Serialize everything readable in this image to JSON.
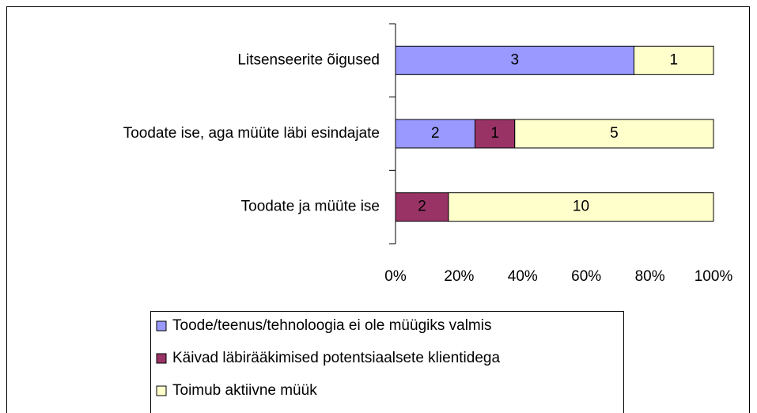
{
  "chart_data": {
    "type": "bar",
    "orientation": "horizontal",
    "stacking": "percent",
    "categories": [
      "Litsenseerite õigused",
      "Toodate ise, aga müüte läbi esindajate",
      "Toodate ja müüte ise"
    ],
    "series": [
      {
        "name": "Toode/teenus/tehnoloogia ei ole müügiks valmis",
        "color": "#9999ff",
        "values": [
          3,
          2,
          null
        ]
      },
      {
        "name": "Käivad läbirääkimised potentsiaalsete klientidega",
        "color": "#993366",
        "values": [
          null,
          1,
          2
        ]
      },
      {
        "name": "Toimub aktiivne müük",
        "color": "#ffffcc",
        "values": [
          1,
          5,
          10
        ]
      }
    ],
    "xlim": [
      0,
      100
    ],
    "xticks": [
      {
        "value": 0,
        "label": "0%"
      },
      {
        "value": 20,
        "label": "20%"
      },
      {
        "value": 40,
        "label": "40%"
      },
      {
        "value": 60,
        "label": "60%"
      },
      {
        "value": 80,
        "label": "80%"
      },
      {
        "value": 100,
        "label": "100%"
      }
    ],
    "grid": false,
    "legend": "bottom"
  }
}
